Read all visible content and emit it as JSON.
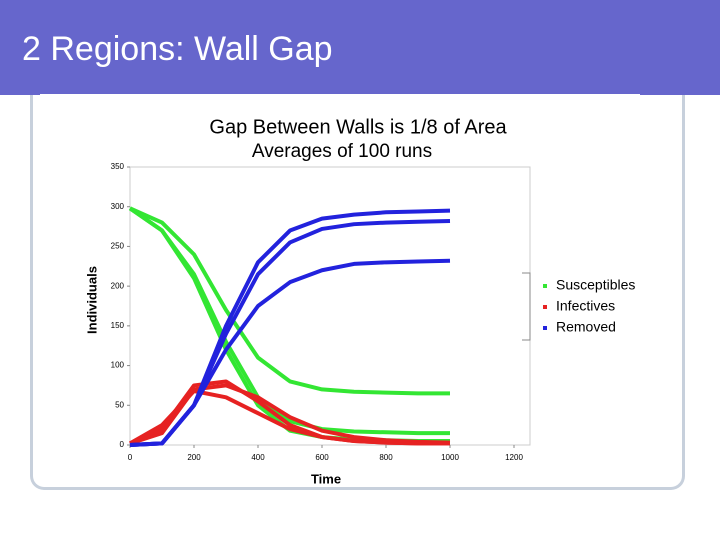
{
  "slide_title": "2 Regions: Wall Gap",
  "chart_data": {
    "type": "line",
    "title": "Gap Between Walls is 1/8 of Area",
    "subtitle": "Averages of 100 runs",
    "x_label": "Time",
    "y_label": "Individuals",
    "x": [
      0,
      100,
      200,
      300,
      400,
      500,
      600,
      700,
      800,
      900,
      1000
    ],
    "xlim": [
      0,
      1250
    ],
    "xticks": [
      0,
      200,
      400,
      600,
      800,
      1000,
      1200
    ],
    "ylim": [
      0,
      350
    ],
    "yticks": [
      0,
      50,
      100,
      150,
      200,
      250,
      300,
      350
    ],
    "legend": "right",
    "series": [
      {
        "name": "Susceptibles",
        "color": "#33e633",
        "values": [
          [
            298,
            280,
            240,
            170,
            110,
            80,
            70,
            67,
            66,
            65,
            65
          ],
          [
            298,
            270,
            215,
            130,
            60,
            30,
            20,
            17,
            16,
            15,
            15
          ],
          [
            298,
            270,
            210,
            120,
            50,
            18,
            10,
            7,
            6,
            5,
            5
          ]
        ]
      },
      {
        "name": "Infectives",
        "color": "#e62222",
        "values": [
          [
            2,
            15,
            70,
            75,
            60,
            35,
            18,
            10,
            6,
            4,
            3
          ],
          [
            2,
            20,
            75,
            80,
            55,
            25,
            10,
            5,
            3,
            2,
            2
          ],
          [
            2,
            25,
            68,
            60,
            40,
            20,
            10,
            5,
            3,
            2,
            2
          ]
        ]
      },
      {
        "name": "Removed",
        "color": "#2222dd",
        "values": [
          [
            0,
            2,
            50,
            150,
            230,
            270,
            285,
            290,
            293,
            294,
            295
          ],
          [
            0,
            2,
            50,
            140,
            215,
            255,
            272,
            278,
            280,
            281,
            282
          ],
          [
            0,
            2,
            50,
            120,
            175,
            205,
            220,
            228,
            230,
            231,
            232
          ]
        ]
      }
    ]
  }
}
